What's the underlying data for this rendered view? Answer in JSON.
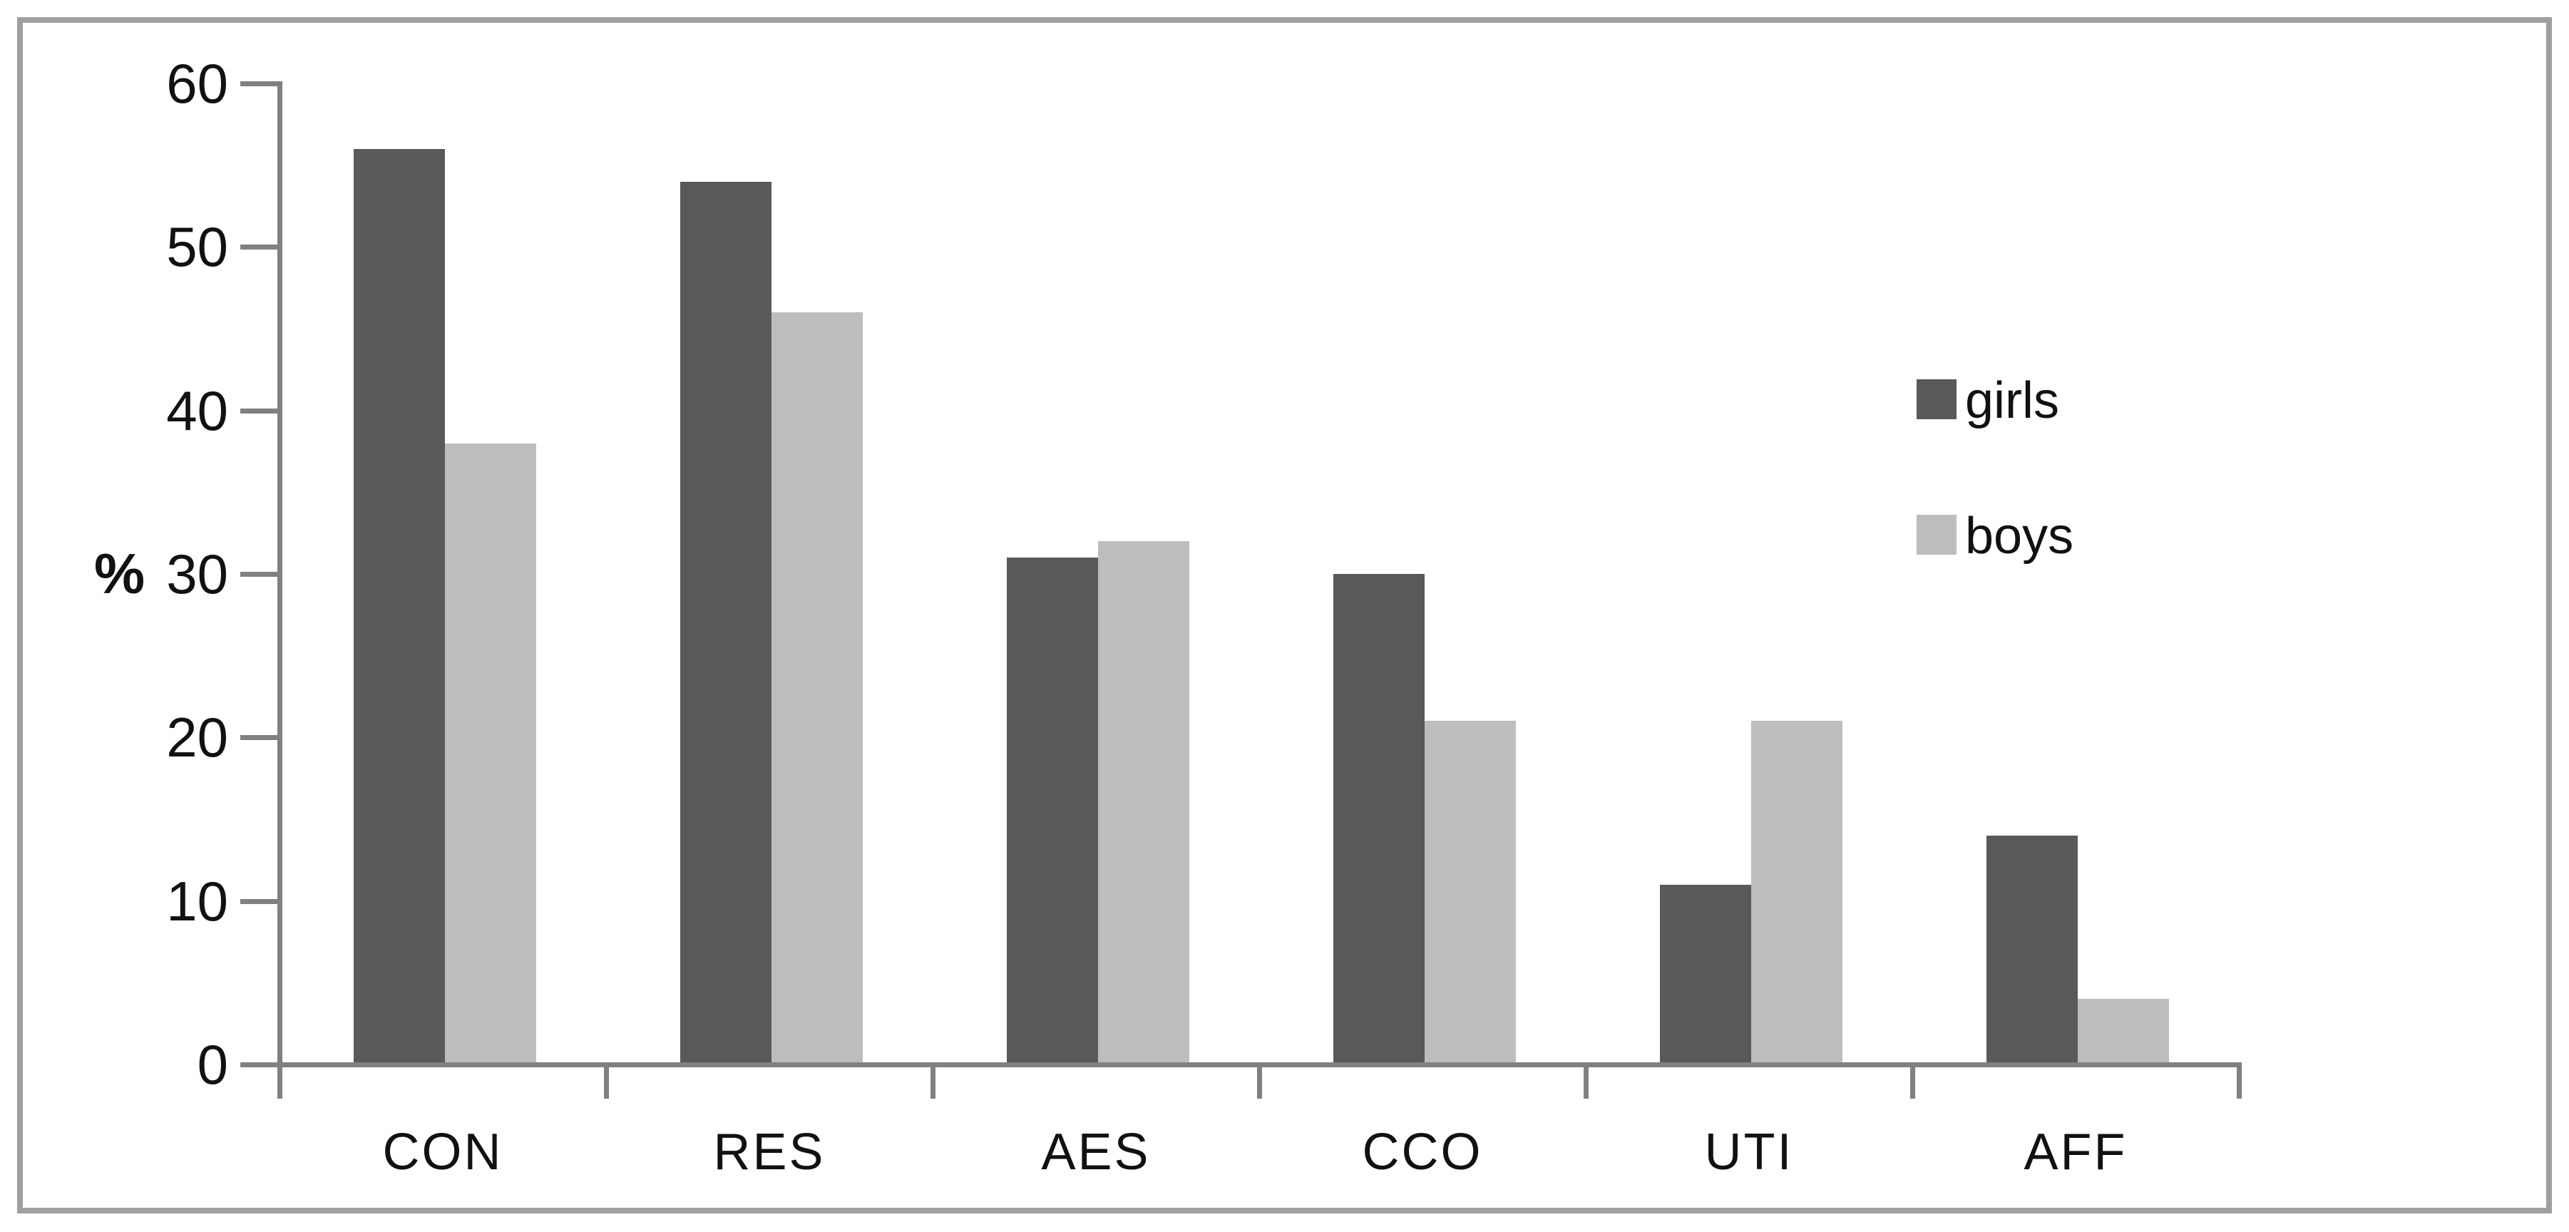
{
  "chart_data": {
    "type": "bar",
    "title": "",
    "categories": [
      "CON",
      "RES",
      "AES",
      "CCO",
      "UTI",
      "AFF"
    ],
    "series": [
      {
        "name": "girls",
        "color": "#595959",
        "values": [
          56,
          54,
          31,
          30,
          11,
          14
        ]
      },
      {
        "name": "boys",
        "color": "#bdbdbd",
        "values": [
          38,
          46,
          32,
          21,
          21,
          4
        ]
      }
    ],
    "xlabel": "",
    "ylabel": "%",
    "yticks": [
      0,
      10,
      20,
      30,
      40,
      50,
      60
    ],
    "ylim": [
      0,
      60
    ],
    "grid": false,
    "legend_position": "right",
    "axis_color": "#808080",
    "frame_color": "#a0a0a0",
    "text_color": "#111111"
  }
}
